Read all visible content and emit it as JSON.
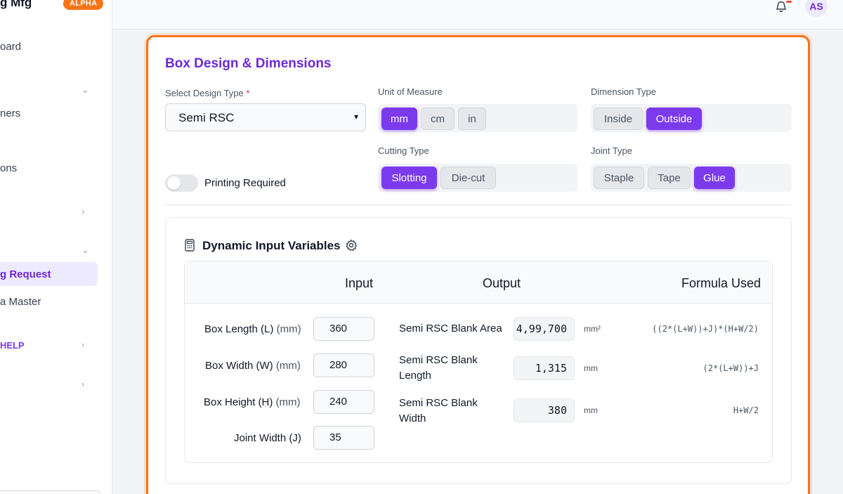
{
  "sidebar": {
    "brand": "g Mfg",
    "badge": "ALPHA",
    "items": [
      {
        "label": "oard"
      },
      {
        "label": "ners"
      },
      {
        "label": "ons"
      },
      {
        "label": "g Request"
      },
      {
        "label": "a Master"
      },
      {
        "label": "HELP"
      }
    ]
  },
  "header": {
    "avatar": "AS"
  },
  "form": {
    "title": "Box Design & Dimensions",
    "design_type_label": "Select Design Type",
    "required_mark": "*",
    "design_type_value": "Semi RSC",
    "unit_label": "Unit of Measure",
    "units": [
      "mm",
      "cm",
      "in"
    ],
    "unit_selected": "mm",
    "dimension_label": "Dimension Type",
    "dimension_options": [
      "Inside",
      "Outside"
    ],
    "dimension_selected": "Outside",
    "cutting_label": "Cutting Type",
    "cutting_options": [
      "Slotting",
      "Die-cut"
    ],
    "cutting_selected": "Slotting",
    "joint_label": "Joint Type",
    "joint_options": [
      "Staple",
      "Tape",
      "Glue"
    ],
    "joint_selected": "Glue",
    "printing_label": "Printing Required",
    "printing_on": false
  },
  "variables": {
    "title": "Dynamic Input Variables",
    "headers": {
      "input": "Input",
      "output": "Output",
      "formula": "Formula Used"
    },
    "inputs": [
      {
        "label": "Box Length (L)",
        "unit": "(mm)",
        "value": "360"
      },
      {
        "label": "Box Width (W)",
        "unit": "(mm)",
        "value": "280"
      },
      {
        "label": "Box Height (H)",
        "unit": "(mm)",
        "value": "240"
      },
      {
        "label": "Joint Width (J)",
        "unit": "",
        "value": "35"
      }
    ],
    "outputs": [
      {
        "label": "Semi RSC Blank Area",
        "value": "4,99,700",
        "unit": "mm²",
        "formula": "((2*(L+W))+J)*(H+W/2)"
      },
      {
        "label": "Semi RSC Blank Length",
        "value": "1,315",
        "unit": "mm",
        "formula": "(2*(L+W))+J"
      },
      {
        "label": "Semi RSC Blank Width",
        "value": "380",
        "unit": "mm",
        "formula": "H+W/2"
      }
    ]
  },
  "colors": {
    "accent": "#7c3aed",
    "highlight_border": "#f97316"
  }
}
